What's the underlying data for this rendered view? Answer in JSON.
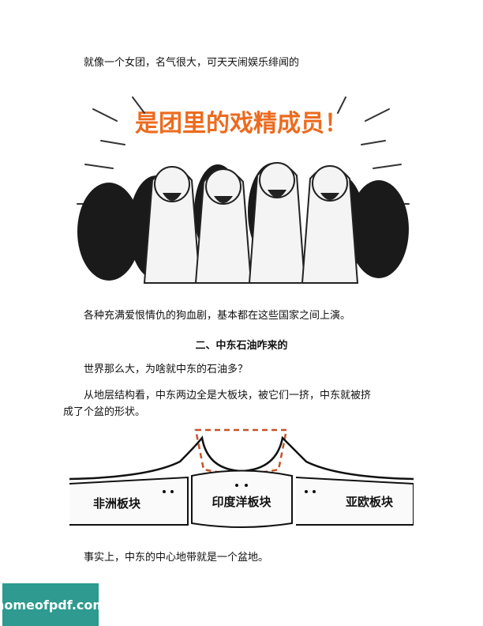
{
  "page": {
    "paragraphs": [
      "就像一个女团，名气很大，可天天闹娱乐绯闻的",
      "各种充满爱恨情仇的狗血剧，基本都在这些国家之间上演。",
      "世界那么大，为啥就中东的石油多？",
      "从地层结构看，中东两边全是大板块，被它们一挤，中东就被挤",
      "成了个盆的形状。",
      "事实上，中东的中心地带就是一个盆地。"
    ],
    "section_heading": "二、中东石油咋来的"
  },
  "illustration_top": {
    "caption": "是团里的戏精成员！",
    "caption_color": "#ec6b1f"
  },
  "illustration_bottom": {
    "plates": [
      "非洲板块",
      "印度洋板块",
      "亚欧板块"
    ],
    "basin_outline_color": "#c5532a"
  },
  "watermark": {
    "text": "homeofpdf.com",
    "bg_color": "#2e9a90"
  }
}
